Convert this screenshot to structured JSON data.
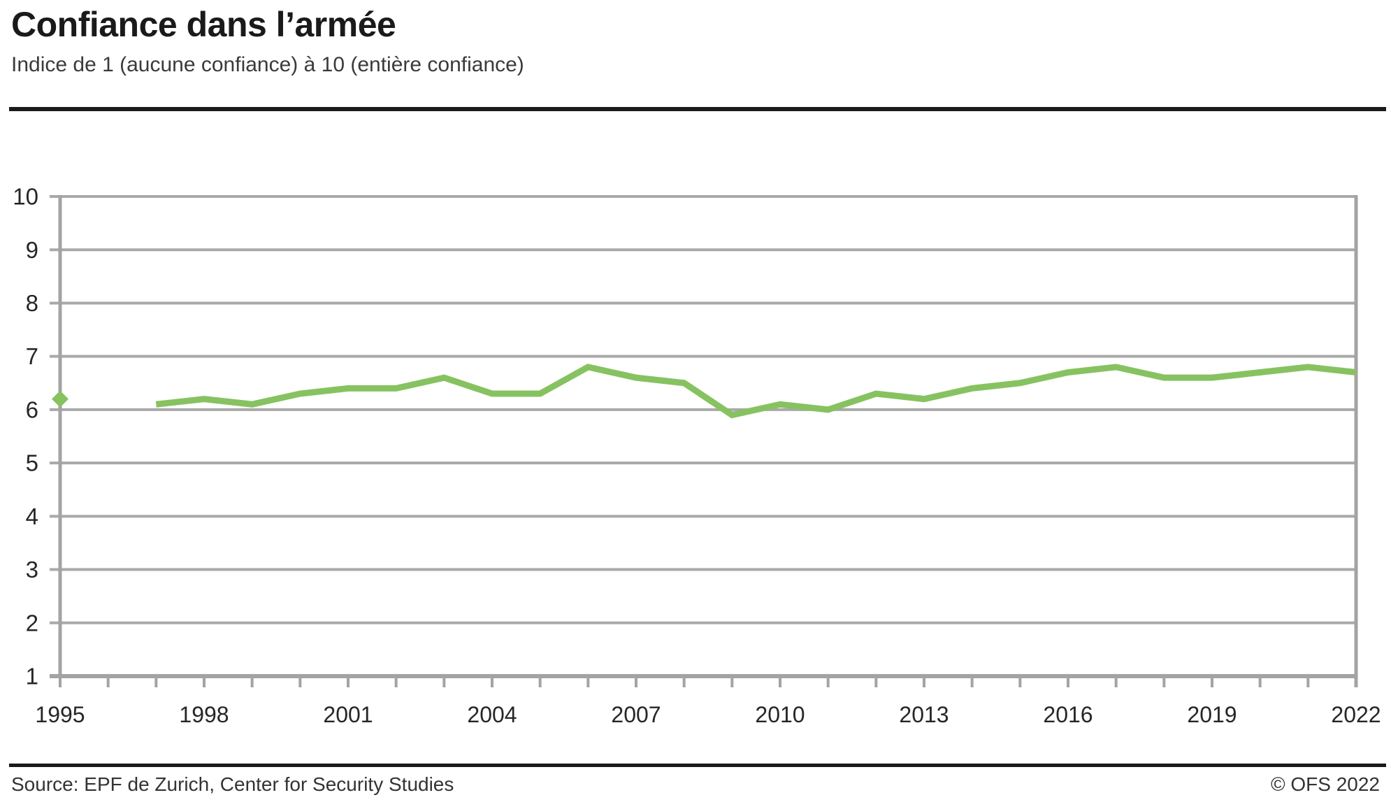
{
  "header": {
    "title": "Confiance dans l’armée",
    "subtitle": "Indice de 1 (aucune confiance) à 10 (entière confiance)"
  },
  "footer": {
    "source": "Source: EPF de Zurich, Center for Security Studies",
    "copyright": "© OFS 2022"
  },
  "colors": {
    "line": "#87C261",
    "grid": "#A9A9A9",
    "axis": "#A3A3A3",
    "tick_text": "#262626",
    "rule": "#1a1a1a"
  },
  "chart_data": {
    "type": "line",
    "title": "Confiance dans l’armée",
    "subtitle": "Indice de 1 (aucune confiance) à 10 (entière confiance)",
    "xlabel": "",
    "ylabel": "",
    "xlim": [
      1995,
      2022
    ],
    "ylim": [
      1,
      10
    ],
    "grid": "horizontal",
    "legend": "none",
    "x": [
      1995,
      1996,
      1997,
      1998,
      1999,
      2000,
      2001,
      2002,
      2003,
      2004,
      2005,
      2006,
      2007,
      2008,
      2009,
      2010,
      2011,
      2012,
      2013,
      2014,
      2015,
      2016,
      2017,
      2018,
      2019,
      2020,
      2021,
      2022
    ],
    "series": [
      {
        "name": "Confiance dans l’armée",
        "color": "#87C261",
        "values": [
          6.2,
          null,
          6.1,
          6.2,
          6.1,
          6.3,
          6.4,
          6.4,
          6.6,
          6.3,
          6.3,
          6.8,
          6.6,
          6.5,
          5.9,
          6.1,
          6.0,
          6.3,
          6.2,
          6.4,
          6.5,
          6.7,
          6.8,
          6.6,
          6.6,
          6.7,
          6.8,
          6.7
        ]
      }
    ],
    "isolated_point_marker": "diamond",
    "yticks": [
      1,
      2,
      3,
      4,
      5,
      6,
      7,
      8,
      9,
      10
    ],
    "ytick_labels": [
      "1",
      "2",
      "3",
      "4",
      "5",
      "6",
      "7",
      "8",
      "9",
      "10"
    ],
    "xticks_every_year": true,
    "labeled_xticks": [
      1995,
      1998,
      2001,
      2004,
      2007,
      2010,
      2013,
      2016,
      2019,
      2022
    ],
    "xtick_labels": [
      "1995",
      "1998",
      "2001",
      "2004",
      "2007",
      "2010",
      "2013",
      "2016",
      "2019",
      "2022"
    ]
  }
}
